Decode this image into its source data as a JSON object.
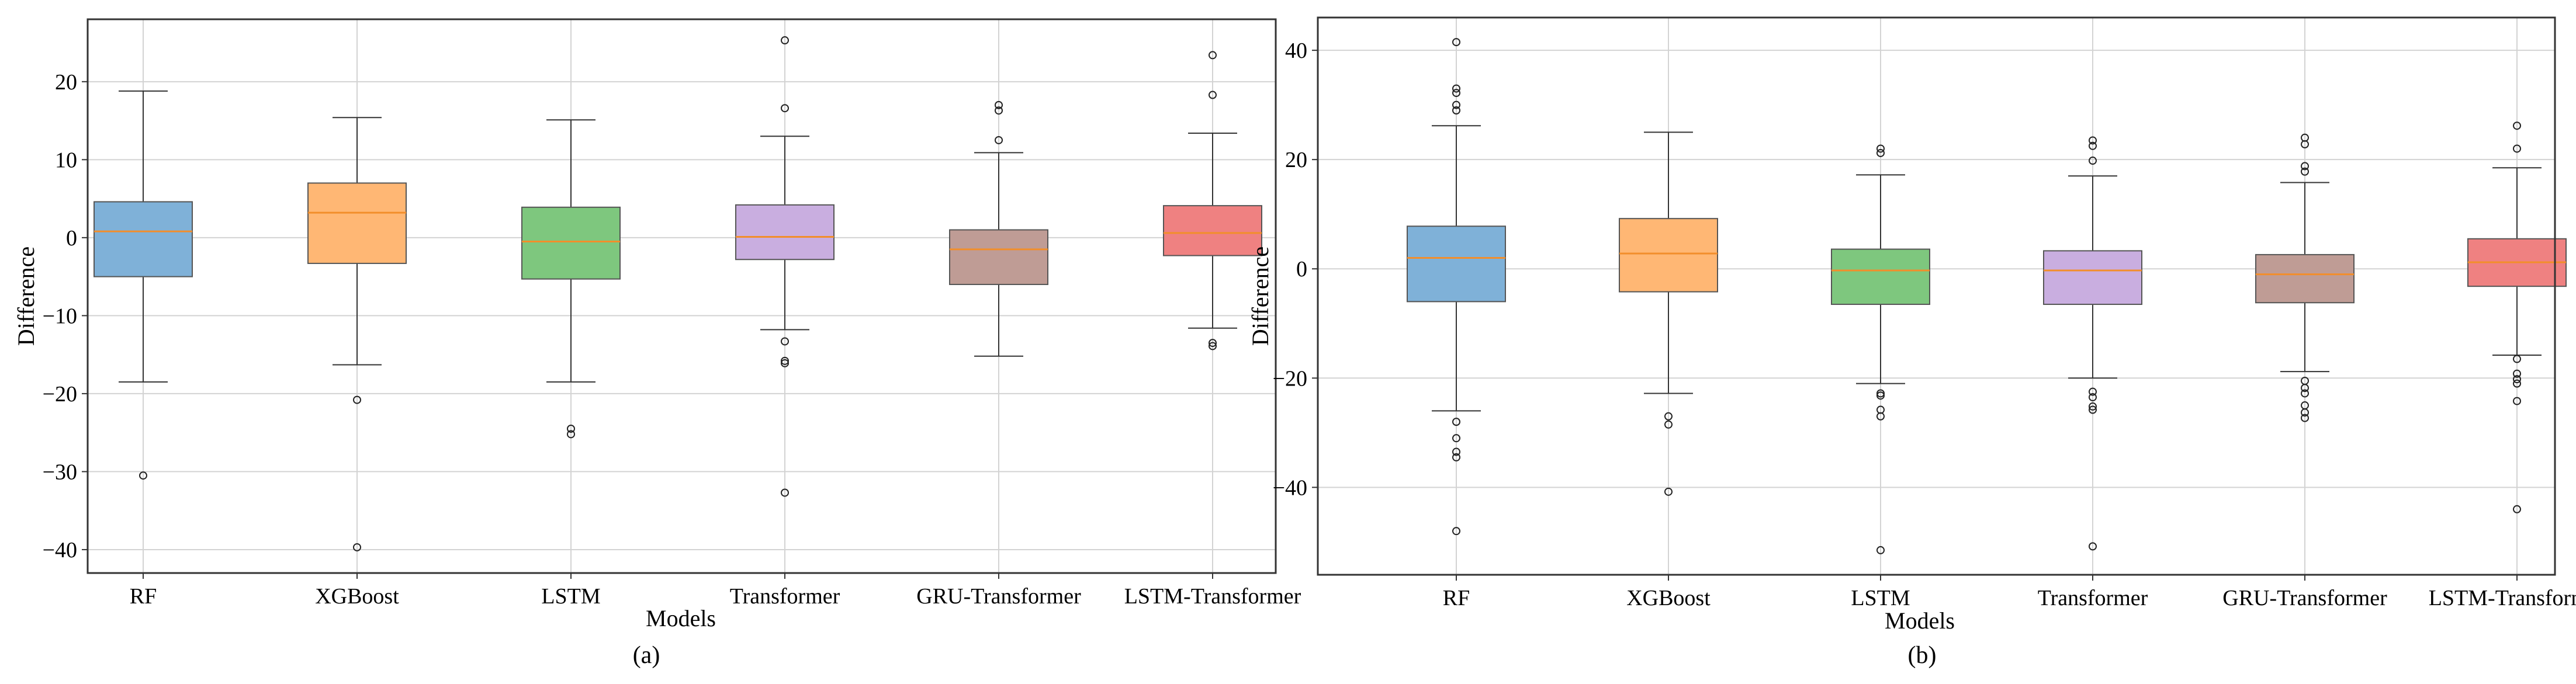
{
  "chart_data": [
    {
      "type": "box",
      "caption": "(a)",
      "xlabel": "Models",
      "ylabel": "Difference",
      "ylim": [
        -43,
        28
      ],
      "yticks": [
        -40,
        -30,
        -20,
        -10,
        0,
        10,
        20
      ],
      "ytick_labels": [
        "−40",
        "−30",
        "−20",
        "−10",
        "0",
        "10",
        "20"
      ],
      "grid": true,
      "categories": [
        "RF",
        "XGBoost",
        "LSTM",
        "Transformer",
        "GRU-Transformer",
        "LSTM-Transformer"
      ],
      "colors": [
        "#7fb1d8",
        "#ffb774",
        "#7ec77e",
        "#c9aee0",
        "#bf9c95",
        "#ef8181"
      ],
      "median_color": "#f28e2b",
      "boxes": [
        {
          "whislo": -18.5,
          "q1": -5.0,
          "med": 0.8,
          "q3": 4.6,
          "whishi": 18.8,
          "fliers": [
            -30.5
          ]
        },
        {
          "whislo": -16.3,
          "q1": -3.3,
          "med": 3.2,
          "q3": 7.0,
          "whishi": 15.4,
          "fliers": [
            -20.8,
            -39.7
          ]
        },
        {
          "whislo": -18.5,
          "q1": -5.3,
          "med": -0.5,
          "q3": 3.9,
          "whishi": 15.1,
          "fliers": [
            -24.5,
            -25.2
          ]
        },
        {
          "whislo": -11.8,
          "q1": -2.8,
          "med": 0.1,
          "q3": 4.2,
          "whishi": 13.0,
          "fliers": [
            25.3,
            16.6,
            -13.3,
            -15.8,
            -16.1,
            -32.7
          ]
        },
        {
          "whislo": -15.2,
          "q1": -6.0,
          "med": -1.5,
          "q3": 1.0,
          "whishi": 10.9,
          "fliers": [
            17.0,
            16.3,
            12.5
          ]
        },
        {
          "whislo": -11.6,
          "q1": -2.3,
          "med": 0.6,
          "q3": 4.1,
          "whishi": 13.4,
          "fliers": [
            23.4,
            18.3,
            -13.5,
            -13.9
          ]
        }
      ]
    },
    {
      "type": "box",
      "caption": "(b)",
      "xlabel": "Models",
      "ylabel": "Difference",
      "ylim": [
        -56,
        46
      ],
      "yticks": [
        -40,
        -20,
        0,
        20,
        40
      ],
      "ytick_labels": [
        "−40",
        "−20",
        "0",
        "20",
        "40"
      ],
      "grid": true,
      "categories": [
        "RF",
        "XGBoost",
        "LSTM",
        "Transformer",
        "GRU-Transformer",
        "LSTM-Transformer"
      ],
      "colors": [
        "#7fb1d8",
        "#ffb774",
        "#7ec77e",
        "#c9aee0",
        "#bf9c95",
        "#ef8181"
      ],
      "median_color": "#f28e2b",
      "boxes": [
        {
          "whislo": -26.0,
          "q1": -6.0,
          "med": 2.0,
          "q3": 7.8,
          "whishi": 26.2,
          "fliers": [
            41.5,
            33.0,
            32.2,
            30.0,
            29.0,
            -28.0,
            -31.0,
            -33.5,
            -34.5,
            -48.0
          ]
        },
        {
          "whislo": -22.8,
          "q1": -4.2,
          "med": 2.8,
          "q3": 9.2,
          "whishi": 25.0,
          "fliers": [
            -27.0,
            -28.5,
            -40.8
          ]
        },
        {
          "whislo": -21.0,
          "q1": -6.5,
          "med": -0.3,
          "q3": 3.6,
          "whishi": 17.2,
          "fliers": [
            22.0,
            21.2,
            -22.8,
            -23.2,
            -25.8,
            -27.0,
            -51.5
          ]
        },
        {
          "whislo": -20.0,
          "q1": -6.5,
          "med": -0.3,
          "q3": 3.3,
          "whishi": 17.0,
          "fliers": [
            23.5,
            22.5,
            19.8,
            -22.5,
            -23.5,
            -25.2,
            -25.8,
            -50.8
          ]
        },
        {
          "whislo": -18.8,
          "q1": -6.2,
          "med": -1.0,
          "q3": 2.6,
          "whishi": 15.8,
          "fliers": [
            24.0,
            22.8,
            18.8,
            17.8,
            -20.5,
            -21.8,
            -22.8,
            -25.0,
            -26.3,
            -27.3
          ]
        },
        {
          "whislo": -15.8,
          "q1": -3.2,
          "med": 1.2,
          "q3": 5.5,
          "whishi": 18.5,
          "fliers": [
            26.2,
            22.0,
            -16.5,
            -19.2,
            -20.2,
            -21.0,
            -24.2,
            -44.0
          ]
        }
      ]
    }
  ]
}
